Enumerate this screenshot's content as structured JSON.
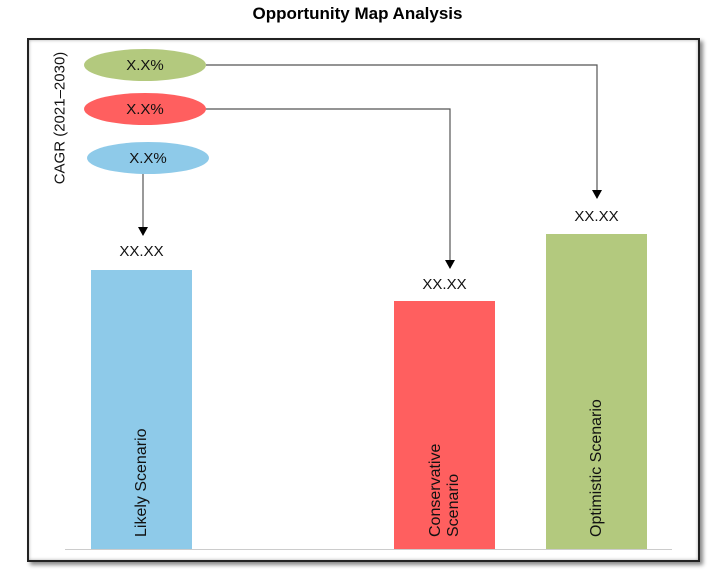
{
  "chart_data": {
    "type": "bar",
    "title": "Opportunity Map Analysis",
    "ylabel": "CAGR (2021–2030)",
    "categories": [
      "Likely Scenario",
      "Conservative Scenario",
      "Optimistic Scenario"
    ],
    "value_labels": [
      "XX.XX",
      "XX.XX",
      "XX.XX"
    ],
    "cagr_labels": {
      "optimistic": "X.X%",
      "conservative": "X.X%",
      "likely": "X.X%"
    },
    "colors": {
      "likely": "#8ecae9",
      "conservative": "#ff5f5f",
      "optimistic": "#b3c97e"
    }
  }
}
